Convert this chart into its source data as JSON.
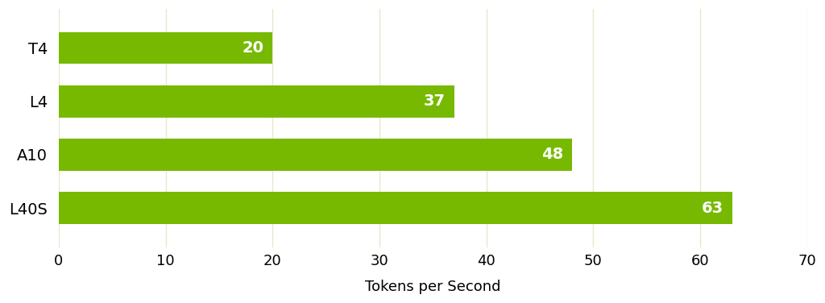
{
  "gpus": [
    "T4",
    "L4",
    "A10",
    "L40S"
  ],
  "values": [
    20,
    37,
    48,
    63
  ],
  "bar_color": "#76b900",
  "bar_height": 0.6,
  "xlabel": "Tokens per Second",
  "xlim": [
    0,
    70
  ],
  "xticks": [
    0,
    10,
    20,
    30,
    40,
    50,
    60,
    70
  ],
  "background_color": "#ffffff",
  "grid_color": "#e8e8c8",
  "label_fontsize": 14,
  "tick_fontsize": 13,
  "xlabel_fontsize": 13,
  "value_fontsize": 14
}
